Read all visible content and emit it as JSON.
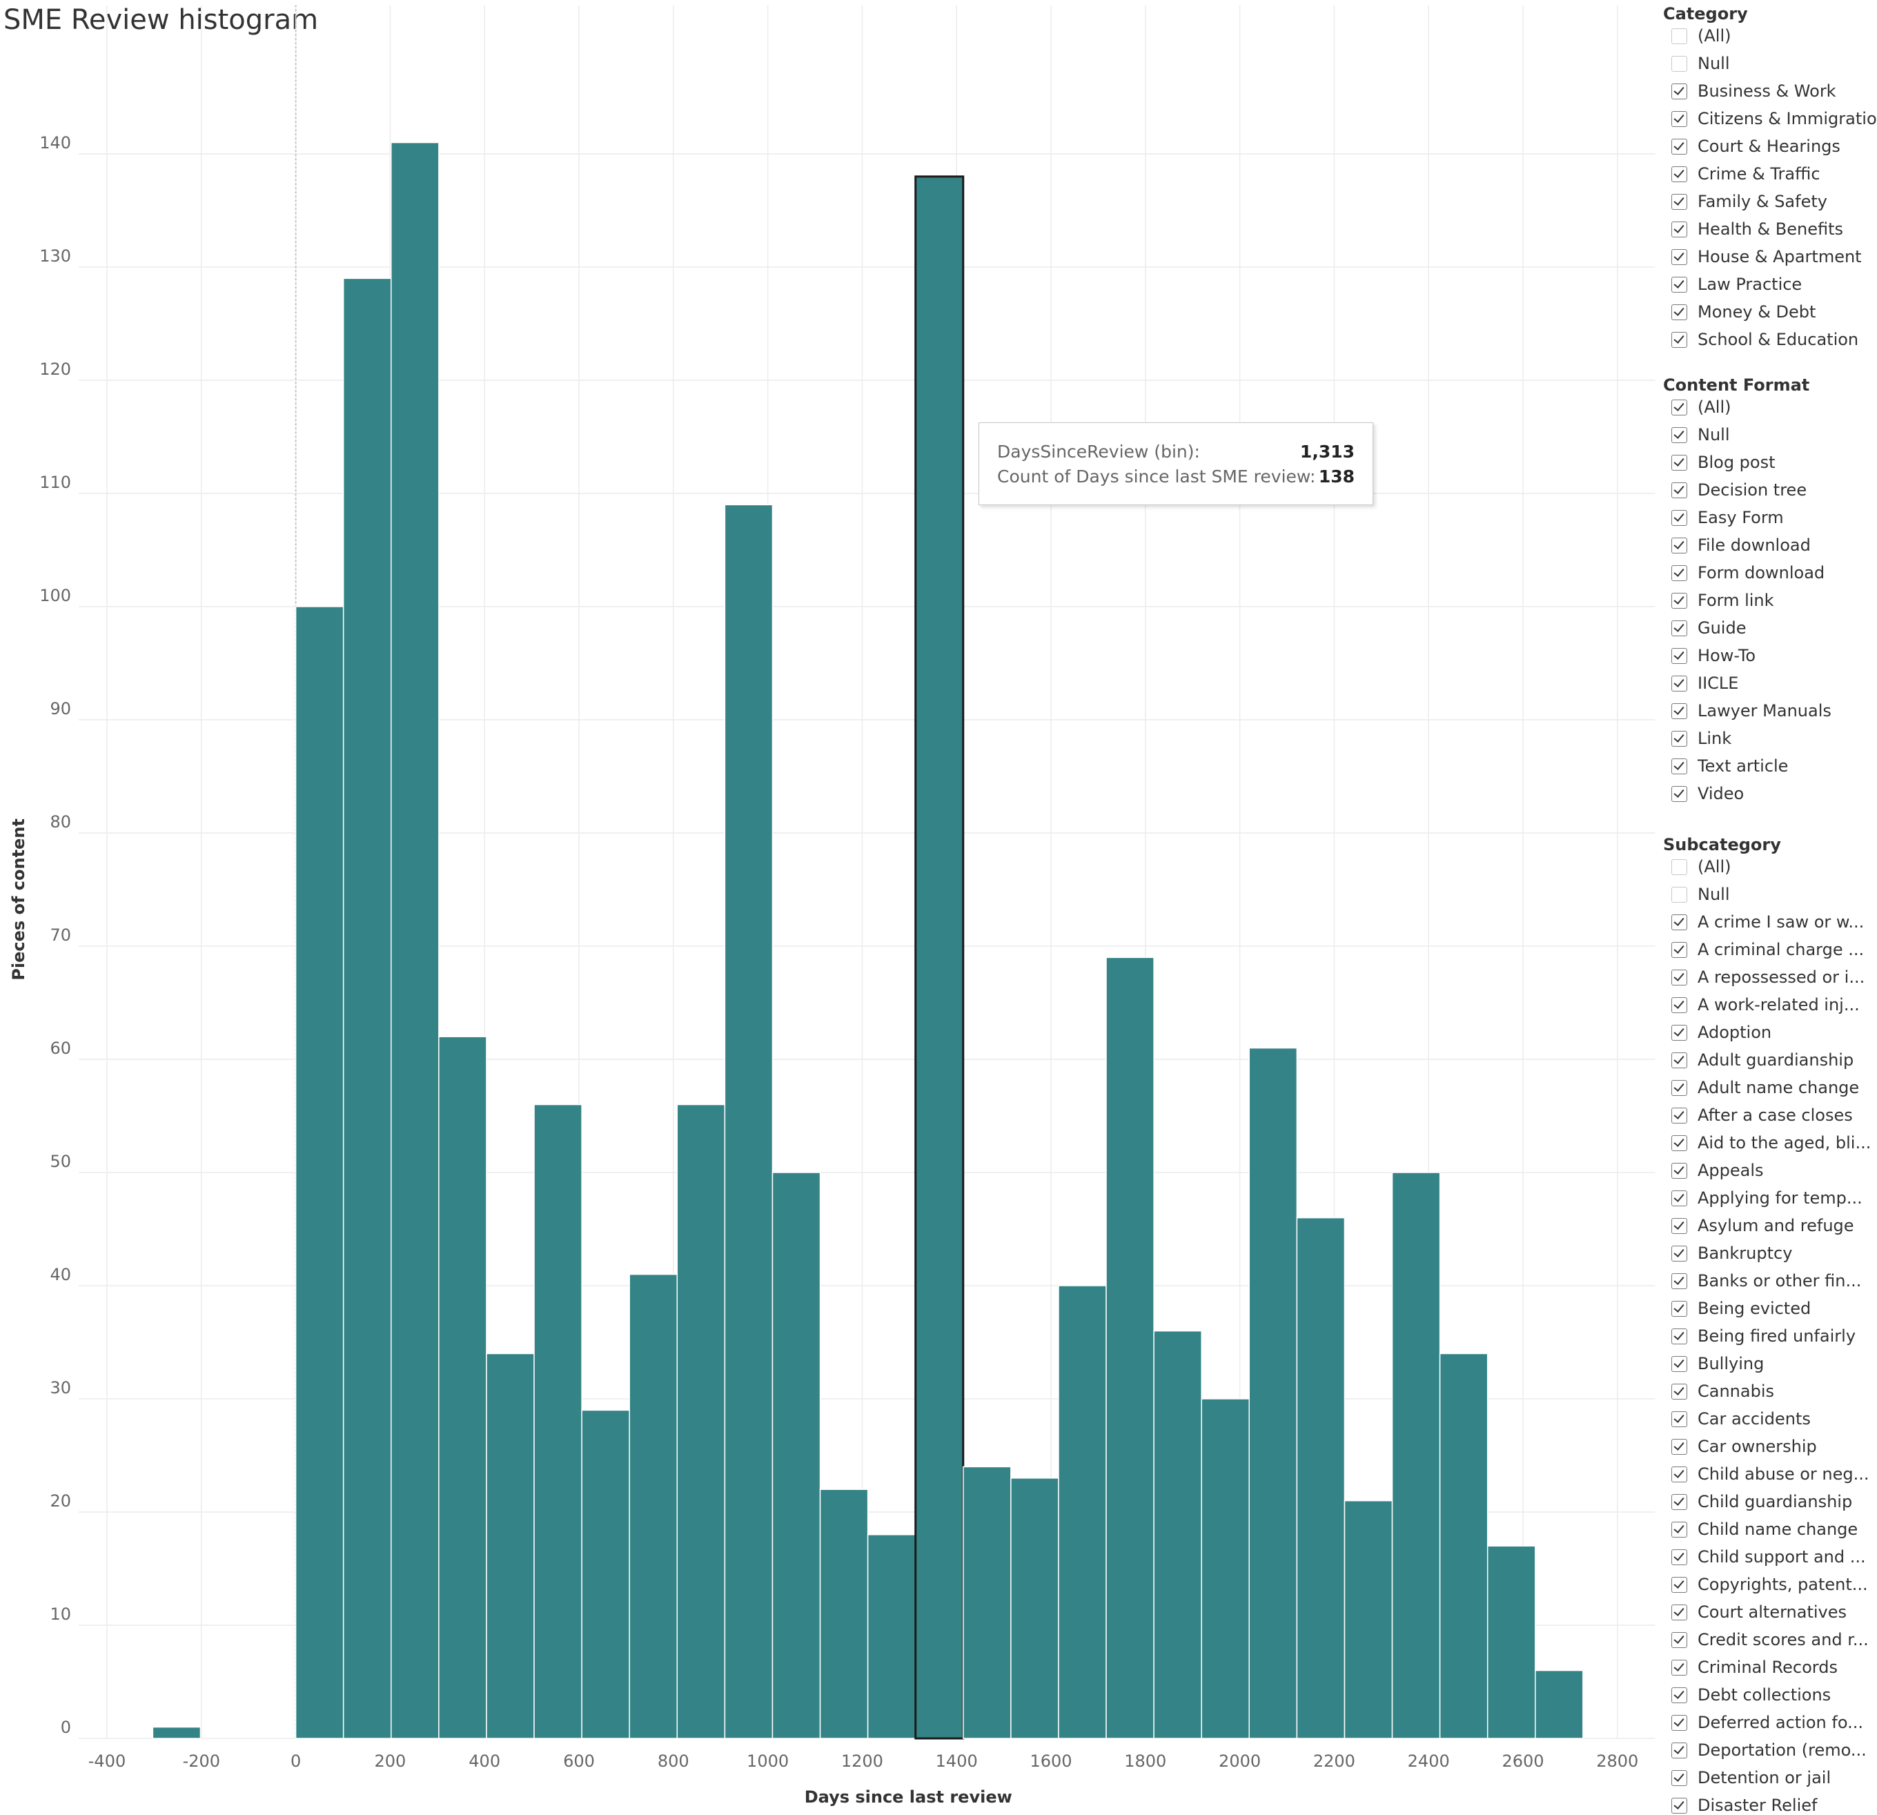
{
  "page": {
    "title": "SME Review histogram"
  },
  "chart_data": {
    "type": "bar",
    "title": "SME Review histogram",
    "xlabel": "Days since last review",
    "ylabel": "Pieces of content",
    "xlim": [
      -460,
      2880
    ],
    "ylim": [
      0,
      153
    ],
    "bin_size": 101,
    "x_ticks": [
      -400,
      -200,
      0,
      200,
      400,
      600,
      800,
      1000,
      1200,
      1400,
      1600,
      1800,
      2000,
      2200,
      2400,
      2600,
      2800
    ],
    "y_ticks": [
      0,
      10,
      20,
      30,
      40,
      50,
      60,
      70,
      80,
      90,
      100,
      110,
      120,
      130,
      140
    ],
    "bins": [
      {
        "start": -303,
        "count": 1
      },
      {
        "start": 0,
        "count": 100
      },
      {
        "start": 101,
        "count": 129
      },
      {
        "start": 202,
        "count": 141
      },
      {
        "start": 303,
        "count": 62
      },
      {
        "start": 404,
        "count": 34
      },
      {
        "start": 505,
        "count": 56
      },
      {
        "start": 606,
        "count": 29
      },
      {
        "start": 707,
        "count": 41
      },
      {
        "start": 808,
        "count": 56
      },
      {
        "start": 909,
        "count": 109
      },
      {
        "start": 1010,
        "count": 50
      },
      {
        "start": 1111,
        "count": 22
      },
      {
        "start": 1212,
        "count": 18
      },
      {
        "start": 1313,
        "count": 138
      },
      {
        "start": 1414,
        "count": 24
      },
      {
        "start": 1515,
        "count": 23
      },
      {
        "start": 1616,
        "count": 40
      },
      {
        "start": 1717,
        "count": 69
      },
      {
        "start": 1818,
        "count": 36
      },
      {
        "start": 1919,
        "count": 30
      },
      {
        "start": 2020,
        "count": 61
      },
      {
        "start": 2121,
        "count": 46
      },
      {
        "start": 2222,
        "count": 21
      },
      {
        "start": 2323,
        "count": 50
      },
      {
        "start": 2424,
        "count": 34
      },
      {
        "start": 2525,
        "count": 17
      },
      {
        "start": 2626,
        "count": 6
      }
    ],
    "highlighted_bin": 1313,
    "bar_color": "#348386",
    "grid": true,
    "legend": "none"
  },
  "tooltip": {
    "label1": "DaysSinceReview (bin):",
    "value1": "1,313",
    "label2": "Count of Days since last SME review:",
    "value2": "138"
  },
  "filters": [
    {
      "title": "Category",
      "items": [
        {
          "label": "(All)",
          "checked": false
        },
        {
          "label": "Null",
          "checked": false
        },
        {
          "label": "Business & Work",
          "checked": true
        },
        {
          "label": "Citizens & Immigration",
          "checked": true
        },
        {
          "label": "Court & Hearings",
          "checked": true
        },
        {
          "label": "Crime & Traffic",
          "checked": true
        },
        {
          "label": "Family & Safety",
          "checked": true
        },
        {
          "label": "Health & Benefits",
          "checked": true
        },
        {
          "label": "House & Apartment",
          "checked": true
        },
        {
          "label": "Law Practice",
          "checked": true
        },
        {
          "label": "Money & Debt",
          "checked": true
        },
        {
          "label": "School & Education",
          "checked": true
        }
      ]
    },
    {
      "title": "Content Format",
      "items": [
        {
          "label": "(All)",
          "checked": true
        },
        {
          "label": "Null",
          "checked": true
        },
        {
          "label": "Blog post",
          "checked": true
        },
        {
          "label": "Decision tree",
          "checked": true
        },
        {
          "label": "Easy Form",
          "checked": true
        },
        {
          "label": "File download",
          "checked": true
        },
        {
          "label": "Form download",
          "checked": true
        },
        {
          "label": "Form link",
          "checked": true
        },
        {
          "label": "Guide",
          "checked": true
        },
        {
          "label": "How-To",
          "checked": true
        },
        {
          "label": "IICLE",
          "checked": true
        },
        {
          "label": "Lawyer Manuals",
          "checked": true
        },
        {
          "label": "Link",
          "checked": true
        },
        {
          "label": "Text article",
          "checked": true
        },
        {
          "label": "Video",
          "checked": true
        }
      ]
    },
    {
      "title": "Subcategory",
      "items": [
        {
          "label": "(All)",
          "checked": false
        },
        {
          "label": "Null",
          "checked": false
        },
        {
          "label": "A crime I saw or w...",
          "checked": true
        },
        {
          "label": "A criminal charge ...",
          "checked": true
        },
        {
          "label": "A repossessed or i...",
          "checked": true
        },
        {
          "label": "A work-related inj...",
          "checked": true
        },
        {
          "label": "Adoption",
          "checked": true
        },
        {
          "label": "Adult guardianship",
          "checked": true
        },
        {
          "label": "Adult name change",
          "checked": true
        },
        {
          "label": "After a case closes",
          "checked": true
        },
        {
          "label": "Aid to the aged, bli...",
          "checked": true
        },
        {
          "label": "Appeals",
          "checked": true
        },
        {
          "label": "Applying for temp...",
          "checked": true
        },
        {
          "label": "Asylum and refuge",
          "checked": true
        },
        {
          "label": "Bankruptcy",
          "checked": true
        },
        {
          "label": "Banks or other fin...",
          "checked": true
        },
        {
          "label": "Being evicted",
          "checked": true
        },
        {
          "label": "Being fired unfairly",
          "checked": true
        },
        {
          "label": "Bullying",
          "checked": true
        },
        {
          "label": "Cannabis",
          "checked": true
        },
        {
          "label": "Car accidents",
          "checked": true
        },
        {
          "label": "Car ownership",
          "checked": true
        },
        {
          "label": "Child abuse or neg...",
          "checked": true
        },
        {
          "label": "Child guardianship",
          "checked": true
        },
        {
          "label": "Child name change",
          "checked": true
        },
        {
          "label": "Child support and ...",
          "checked": true
        },
        {
          "label": "Copyrights, patent...",
          "checked": true
        },
        {
          "label": "Court alternatives",
          "checked": true
        },
        {
          "label": "Credit scores and r...",
          "checked": true
        },
        {
          "label": "Criminal Records",
          "checked": true
        },
        {
          "label": "Debt collections",
          "checked": true
        },
        {
          "label": "Deferred action fo...",
          "checked": true
        },
        {
          "label": "Deportation (remo...",
          "checked": true
        },
        {
          "label": "Detention or jail",
          "checked": true
        },
        {
          "label": "Disaster Relief",
          "checked": true
        }
      ]
    }
  ]
}
